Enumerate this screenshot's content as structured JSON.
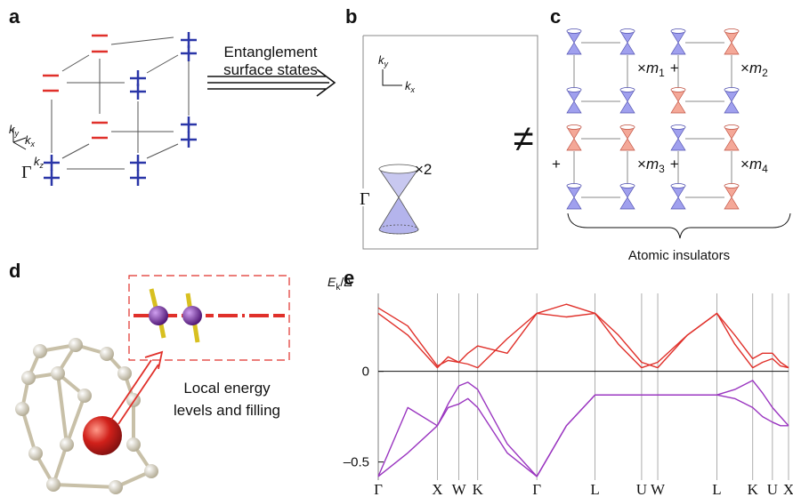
{
  "panel_labels": [
    "a",
    "b",
    "c",
    "d",
    "e"
  ],
  "panel_a": {
    "gamma": "Γ",
    "axes": {
      "ky": [
        "k",
        "y"
      ],
      "kx": [
        "k",
        "x"
      ],
      "kz": [
        "k",
        "z"
      ]
    },
    "arrow_text": [
      "Entanglement",
      "surface states"
    ]
  },
  "panel_b": {
    "gamma": "Γ",
    "multiplicity": "×2",
    "axes": {
      "ky": [
        "k",
        "y"
      ],
      "kx": [
        "k",
        "x"
      ]
    }
  },
  "not_equal": "≠",
  "panel_c": {
    "terms": [
      [
        "×",
        "m",
        "1"
      ],
      [
        "×",
        "m",
        "2"
      ],
      [
        "×",
        "m",
        "3"
      ],
      [
        "×",
        "m",
        "4"
      ]
    ],
    "plus": "+",
    "caption": "Atomic insulators"
  },
  "panel_d": {
    "caption": [
      "Local energy",
      "levels and filling"
    ]
  },
  "chart_data": {
    "type": "line",
    "ylabel": [
      "E",
      "k",
      "/Δ"
    ],
    "x": [
      0,
      33,
      66,
      78,
      90,
      100,
      111,
      144,
      177,
      210,
      242,
      268,
      294,
      312,
      345,
      378,
      398,
      418,
      429,
      440,
      449,
      458
    ],
    "series": [
      {
        "color": "#e0302a",
        "values": [
          0.32,
          0.2,
          0.02,
          0.08,
          0.05,
          0.1,
          0.14,
          0.1,
          0.32,
          0.37,
          0.32,
          0.15,
          0.02,
          0.05,
          0.2,
          0.32,
          0.2,
          0.07,
          0.1,
          0.1,
          0.05,
          0.02
        ]
      },
      {
        "color": "#e0302a",
        "values": [
          0.35,
          0.25,
          0.03,
          0.06,
          0.05,
          0.04,
          0.02,
          0.18,
          0.32,
          0.3,
          0.32,
          0.2,
          0.05,
          0.02,
          0.2,
          0.32,
          0.15,
          0.02,
          0.05,
          0.07,
          0.03,
          0.02
        ]
      },
      {
        "color": "#9a35c0",
        "values": [
          -0.58,
          -0.2,
          -0.3,
          -0.18,
          -0.08,
          -0.06,
          -0.1,
          -0.4,
          -0.58,
          -0.3,
          -0.13,
          -0.13,
          -0.13,
          -0.13,
          -0.13,
          -0.13,
          -0.1,
          -0.05,
          -0.12,
          -0.2,
          -0.25,
          -0.3
        ]
      },
      {
        "color": "#9a35c0",
        "values": [
          -0.58,
          -0.45,
          -0.3,
          -0.2,
          -0.18,
          -0.15,
          -0.2,
          -0.45,
          -0.58,
          -0.3,
          -0.13,
          -0.13,
          -0.13,
          -0.13,
          -0.13,
          -0.13,
          -0.15,
          -0.2,
          -0.25,
          -0.28,
          -0.3,
          -0.3
        ]
      }
    ],
    "xlim": [
      0,
      458
    ],
    "xticks": [
      {
        "value": 0,
        "label": "Γ"
      },
      {
        "value": 66,
        "label": "X"
      },
      {
        "value": 90,
        "label": "W"
      },
      {
        "value": 111,
        "label": "K"
      },
      {
        "value": 177,
        "label": "Γ"
      },
      {
        "value": 242,
        "label": "L"
      },
      {
        "value": 294,
        "label": "U"
      },
      {
        "value": 312,
        "label": "W"
      },
      {
        "value": 378,
        "label": "L"
      },
      {
        "value": 418,
        "label": "K"
      },
      {
        "value": 440,
        "label": "U"
      },
      {
        "value": 458,
        "label": "X"
      }
    ],
    "ylim": [
      -0.6,
      0.43
    ],
    "yticks": [
      0,
      {
        "value": -0.5,
        "label": "–0.5"
      }
    ],
    "grid": true,
    "zero_line": true
  }
}
